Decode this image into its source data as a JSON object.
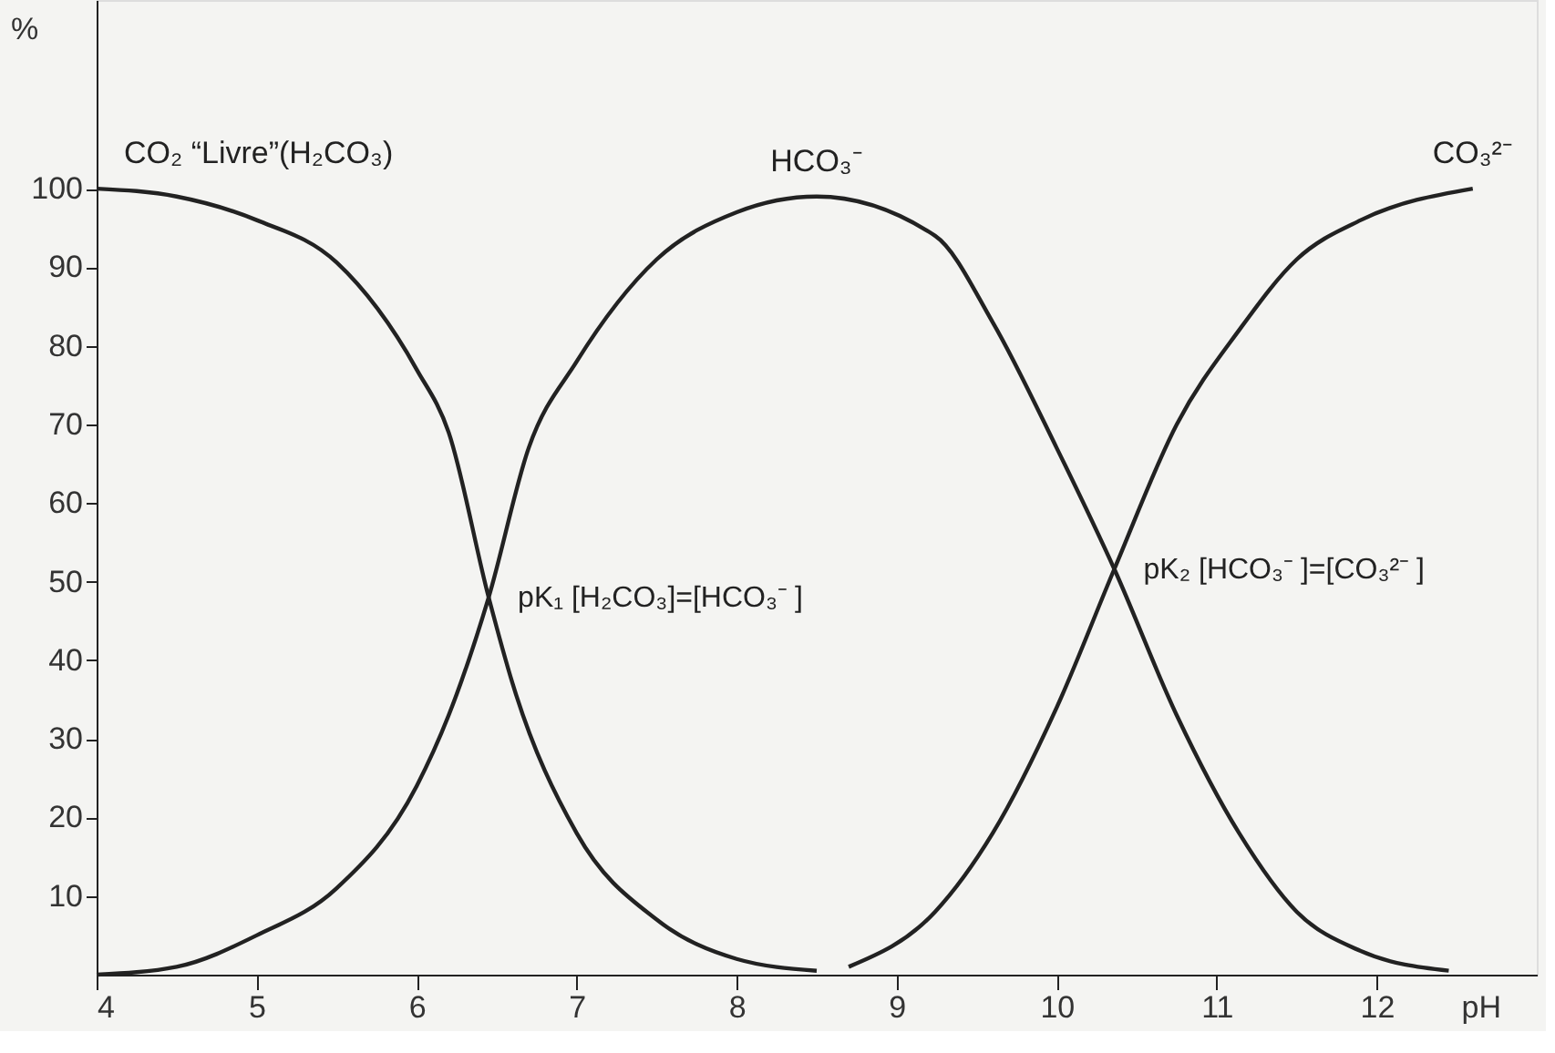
{
  "chart_data": {
    "type": "line",
    "xlabel": "pH",
    "ylabel": "%",
    "xlim": [
      4,
      13
    ],
    "ylim": [
      0,
      124
    ],
    "xticks": [
      4,
      5,
      6,
      7,
      8,
      9,
      10,
      11,
      12
    ],
    "yticks": [
      10,
      20,
      30,
      40,
      50,
      60,
      70,
      80,
      90,
      100
    ],
    "grid": false,
    "marker": "none",
    "line_style": "solid",
    "series": [
      {
        "name": "CO₂ “Livre”(H₂CO₃)",
        "color": "#222222",
        "x": [
          4,
          4.5,
          5,
          5.5,
          6,
          6.2,
          6.45,
          6.6,
          7,
          7.5,
          8,
          8.5
        ],
        "values": [
          100,
          99,
          96,
          90.6,
          77,
          69,
          48,
          37,
          18,
          7,
          2,
          0.5
        ]
      },
      {
        "name": "HCO₃⁻",
        "color": "#222222",
        "x": [
          4,
          4.5,
          5,
          5.5,
          6,
          6.2,
          6.45,
          6.7,
          7,
          7.5,
          8,
          8.5,
          9.24,
          9.6,
          10,
          10.36,
          10.75,
          11.14,
          11.5,
          11.9,
          12.45
        ],
        "values": [
          0,
          1,
          5,
          11,
          24,
          33,
          48,
          67,
          78,
          91,
          97,
          99,
          94,
          83,
          67,
          51.6,
          33,
          18,
          8,
          3,
          0.5
        ]
      },
      {
        "name": "CO₃²⁻",
        "color": "#222222",
        "x": [
          8.7,
          9.24,
          9.6,
          10,
          10.36,
          10.75,
          11.14,
          11.5,
          11.9,
          12.6
        ],
        "values": [
          1,
          8,
          18,
          34,
          51.6,
          70,
          82,
          91,
          96,
          100
        ]
      }
    ],
    "annotations": [
      {
        "text": "pK₁ [H₂CO₃]=[HCO₃⁻ ]",
        "x": 6.45,
        "y": 48
      },
      {
        "text": "pK₂ [HCO₃⁻ ]=[CO₃²⁻ ]",
        "x": 10.36,
        "y": 51.6
      }
    ]
  }
}
